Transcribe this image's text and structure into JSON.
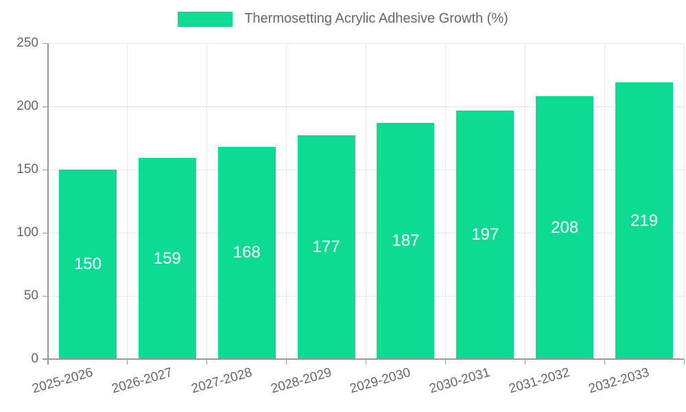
{
  "legend": {
    "label": "Thermosetting Acrylic Adhesive Growth (%)"
  },
  "colors": {
    "bar": "#0ddb94",
    "grid": "#e6e6e6",
    "axis": "#9a9a9a",
    "tick_text": "#666666",
    "legend_text": "#666666",
    "value_text": "#ffffff",
    "background": "#ffffff"
  },
  "chart_data": {
    "type": "bar",
    "title": "",
    "xlabel": "",
    "ylabel": "",
    "categories": [
      "2025-2026",
      "2026-2027",
      "2027-2028",
      "2028-2029",
      "2029-2030",
      "2030-2031",
      "2031-2032",
      "2032-2033"
    ],
    "series": [
      {
        "name": "Thermosetting Acrylic Adhesive Growth (%)",
        "values": [
          150,
          159,
          168,
          177,
          187,
          197,
          208,
          219
        ]
      }
    ],
    "value_labels": "inside-center",
    "ylim": [
      0,
      250
    ],
    "yticks": [
      0,
      50,
      100,
      150,
      200,
      250
    ],
    "grid": "both",
    "legend_position": "top",
    "xtick_rotation_deg": -16
  }
}
